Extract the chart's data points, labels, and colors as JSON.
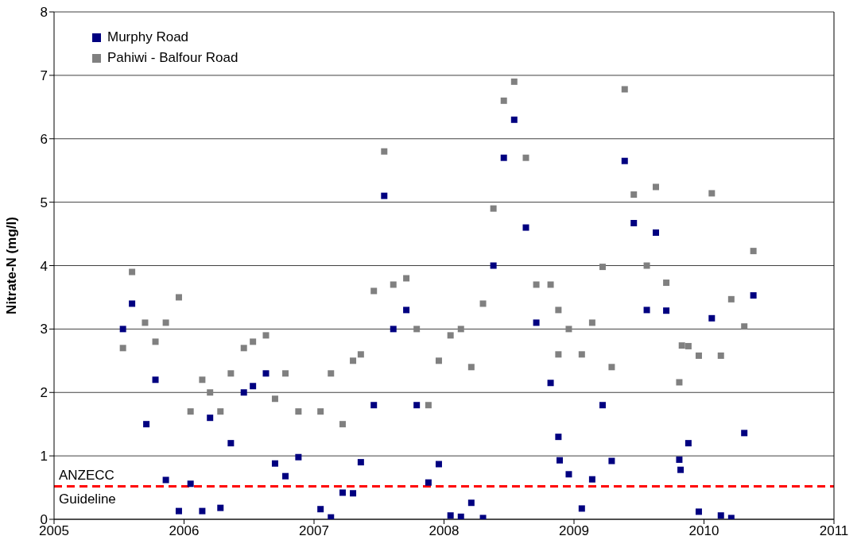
{
  "chart_data": {
    "type": "scatter",
    "ylabel": "Nitrate-N (mg/l)",
    "xlim": [
      2005,
      2011
    ],
    "xticks": [
      2005,
      2006,
      2007,
      2008,
      2009,
      2010,
      2011
    ],
    "ylim": [
      0,
      8
    ],
    "yticks": [
      0,
      1,
      2,
      3,
      4,
      5,
      6,
      7,
      8
    ],
    "grid": "y",
    "legend": "top left",
    "marker": "square",
    "ref_lines": [
      {
        "axis": "y",
        "value": 0.52,
        "label": "ANZECC\nGuideline",
        "color": "#ff0000",
        "line_style": "dashed"
      }
    ],
    "series": [
      {
        "name": "Murphy Road",
        "color": "#000080",
        "x": [
          2005.53,
          2005.6,
          2005.71,
          2005.78,
          2005.86,
          2005.96,
          2006.05,
          2006.14,
          2006.2,
          2006.28,
          2006.36,
          2006.46,
          2006.53,
          2006.63,
          2006.7,
          2006.78,
          2006.88,
          2007.05,
          2007.13,
          2007.22,
          2007.3,
          2007.36,
          2007.46,
          2007.54,
          2007.61,
          2007.71,
          2007.79,
          2007.88,
          2007.96,
          2008.05,
          2008.13,
          2008.21,
          2008.3,
          2008.38,
          2008.46,
          2008.54,
          2008.63,
          2008.71,
          2008.82,
          2008.88,
          2008.89,
          2008.96,
          2009.06,
          2009.14,
          2009.22,
          2009.29,
          2009.39,
          2009.46,
          2009.56,
          2009.63,
          2009.71,
          2009.81,
          2009.82,
          2009.88,
          2009.96,
          2010.06,
          2010.13,
          2010.21,
          2010.31,
          2010.38
        ],
        "values": [
          3.0,
          3.4,
          1.5,
          2.2,
          0.62,
          0.13,
          0.56,
          0.13,
          1.6,
          0.18,
          1.2,
          2.0,
          2.1,
          2.3,
          0.88,
          0.68,
          0.98,
          0.16,
          0.03,
          0.42,
          0.41,
          0.9,
          1.8,
          5.1,
          3.0,
          3.3,
          1.8,
          0.58,
          0.87,
          0.06,
          0.04,
          0.26,
          0.02,
          4.0,
          5.7,
          6.3,
          4.6,
          3.1,
          2.15,
          1.3,
          0.93,
          0.71,
          0.17,
          0.63,
          1.8,
          0.92,
          5.65,
          4.67,
          3.3,
          4.52,
          3.29,
          0.94,
          0.78,
          1.2,
          0.12,
          3.17,
          0.06,
          0.02,
          1.36,
          3.53
        ]
      },
      {
        "name": "Pahiwi - Balfour Road",
        "color": "#808080",
        "x": [
          2005.53,
          2005.6,
          2005.7,
          2005.78,
          2005.86,
          2005.96,
          2006.05,
          2006.14,
          2006.2,
          2006.28,
          2006.36,
          2006.46,
          2006.53,
          2006.63,
          2006.7,
          2006.78,
          2006.88,
          2007.05,
          2007.13,
          2007.22,
          2007.3,
          2007.36,
          2007.46,
          2007.54,
          2007.61,
          2007.71,
          2007.79,
          2007.88,
          2007.96,
          2008.05,
          2008.13,
          2008.21,
          2008.3,
          2008.38,
          2008.46,
          2008.54,
          2008.63,
          2008.71,
          2008.82,
          2008.88,
          2008.88,
          2008.96,
          2009.06,
          2009.14,
          2009.22,
          2009.29,
          2009.39,
          2009.46,
          2009.56,
          2009.63,
          2009.71,
          2009.81,
          2009.83,
          2009.88,
          2009.96,
          2010.06,
          2010.13,
          2010.21,
          2010.31,
          2010.38
        ],
        "values": [
          2.7,
          3.9,
          3.1,
          2.8,
          3.1,
          3.5,
          1.7,
          2.2,
          2.0,
          1.7,
          2.3,
          2.7,
          2.8,
          2.9,
          1.9,
          2.3,
          1.7,
          1.7,
          2.3,
          1.5,
          2.5,
          2.6,
          3.6,
          5.8,
          3.7,
          3.8,
          3.0,
          1.8,
          2.5,
          2.9,
          3.0,
          2.4,
          3.4,
          4.9,
          6.6,
          6.9,
          5.7,
          3.7,
          3.7,
          3.3,
          2.6,
          3.0,
          2.6,
          3.1,
          3.98,
          2.4,
          6.78,
          5.12,
          4.0,
          5.24,
          3.73,
          2.16,
          2.74,
          2.73,
          2.58,
          5.14,
          2.58,
          3.47,
          3.04,
          4.23
        ]
      }
    ]
  }
}
